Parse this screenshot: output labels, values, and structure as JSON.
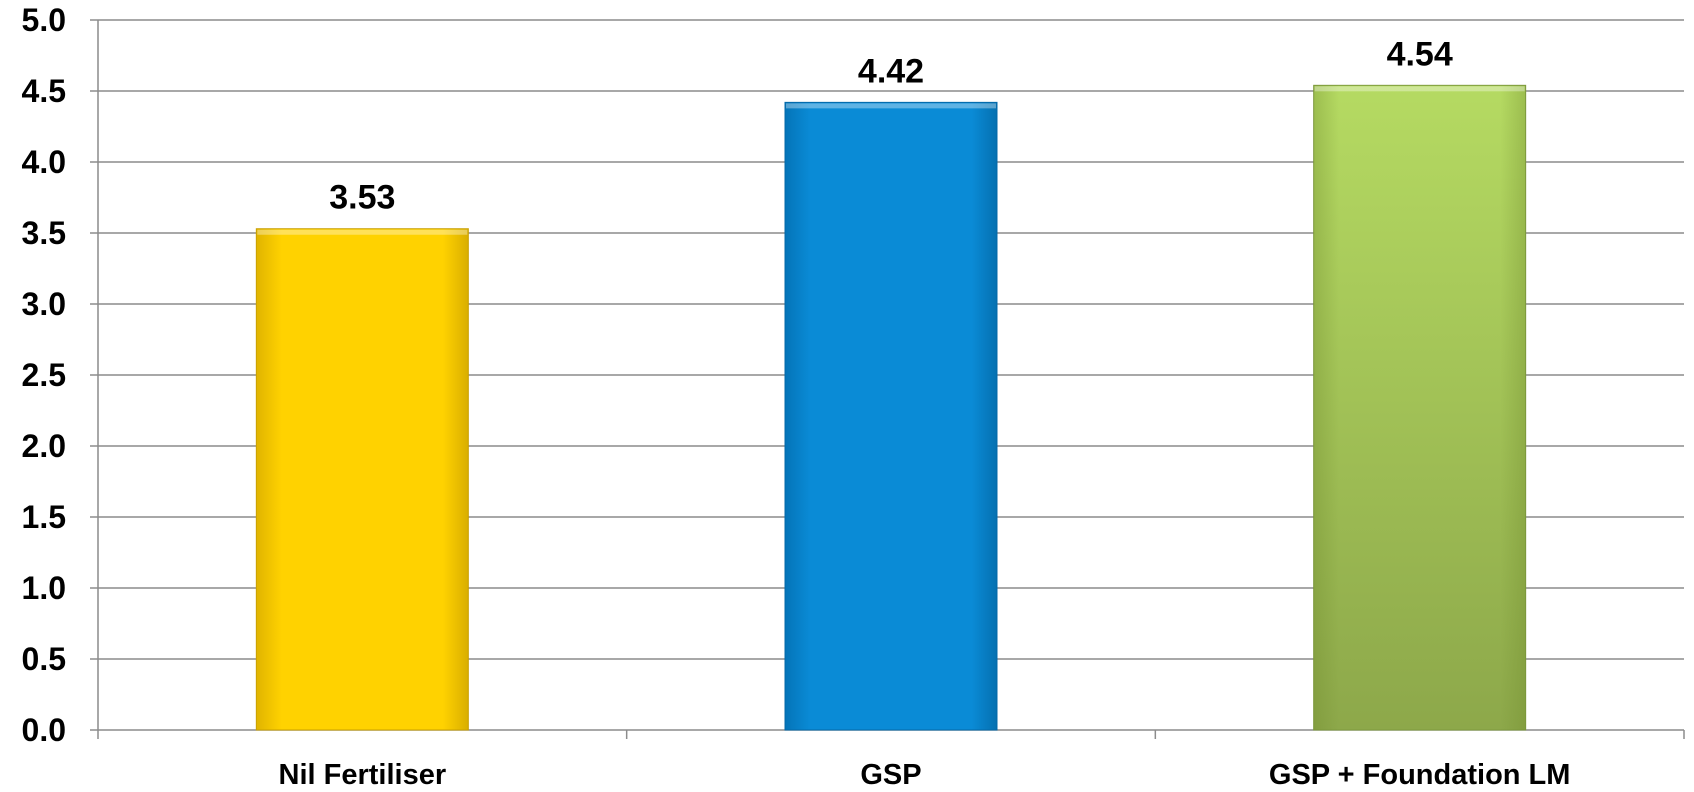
{
  "chart_data": {
    "type": "bar",
    "categories": [
      "Nil Fertiliser",
      "GSP",
      "GSP + Foundation LM"
    ],
    "values": [
      3.53,
      4.42,
      4.54
    ],
    "data_labels": [
      "3.53",
      "4.42",
      "4.54"
    ],
    "y_ticks": [
      "0.0",
      "0.5",
      "1.0",
      "1.5",
      "2.0",
      "2.5",
      "3.0",
      "3.5",
      "4.0",
      "4.5",
      "5.0"
    ],
    "ylim": [
      0,
      5
    ],
    "grid": true,
    "legend": "none",
    "colors": [
      "#FFD100",
      "#0B8BD6",
      "#A6C85A"
    ]
  }
}
